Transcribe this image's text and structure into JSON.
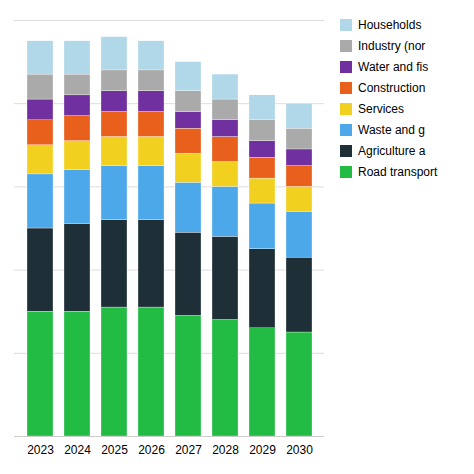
{
  "chart_data": {
    "type": "bar",
    "stacked": true,
    "categories": [
      "2023",
      "2024",
      "2025",
      "2026",
      "2027",
      "2028",
      "2029",
      "2030"
    ],
    "series": [
      {
        "name": "Road transport",
        "color": "#22bb44",
        "values": [
          30,
          30,
          31,
          31,
          29,
          28,
          26,
          25
        ]
      },
      {
        "name": "Agriculture a",
        "color": "#1e2f38",
        "values": [
          20,
          21,
          21,
          21,
          20,
          20,
          19,
          18
        ]
      },
      {
        "name": "Waste and g",
        "color": "#4da8ea",
        "values": [
          13,
          13,
          13,
          13,
          12,
          12,
          11,
          11
        ]
      },
      {
        "name": "Services",
        "color": "#f2d020",
        "values": [
          7,
          7,
          7,
          7,
          7,
          6,
          6,
          6
        ]
      },
      {
        "name": "Construction",
        "color": "#e8601c",
        "values": [
          6,
          6,
          6,
          6,
          6,
          6,
          5,
          5
        ]
      },
      {
        "name": "Water and fis",
        "color": "#7030a0",
        "values": [
          5,
          5,
          5,
          5,
          4,
          4,
          4,
          4
        ]
      },
      {
        "name": "Industry (nor",
        "color": "#aaaaaa",
        "values": [
          6,
          5,
          5,
          5,
          5,
          5,
          5,
          5
        ]
      },
      {
        "name": "Households",
        "color": "#b0d8e8",
        "values": [
          8,
          8,
          8,
          7,
          7,
          6,
          6,
          6
        ]
      }
    ],
    "ylim": [
      0,
      100
    ],
    "yticks": [
      0,
      20,
      40,
      60,
      80,
      100
    ],
    "grid": true,
    "legend": "right",
    "tick_labels": "x"
  }
}
